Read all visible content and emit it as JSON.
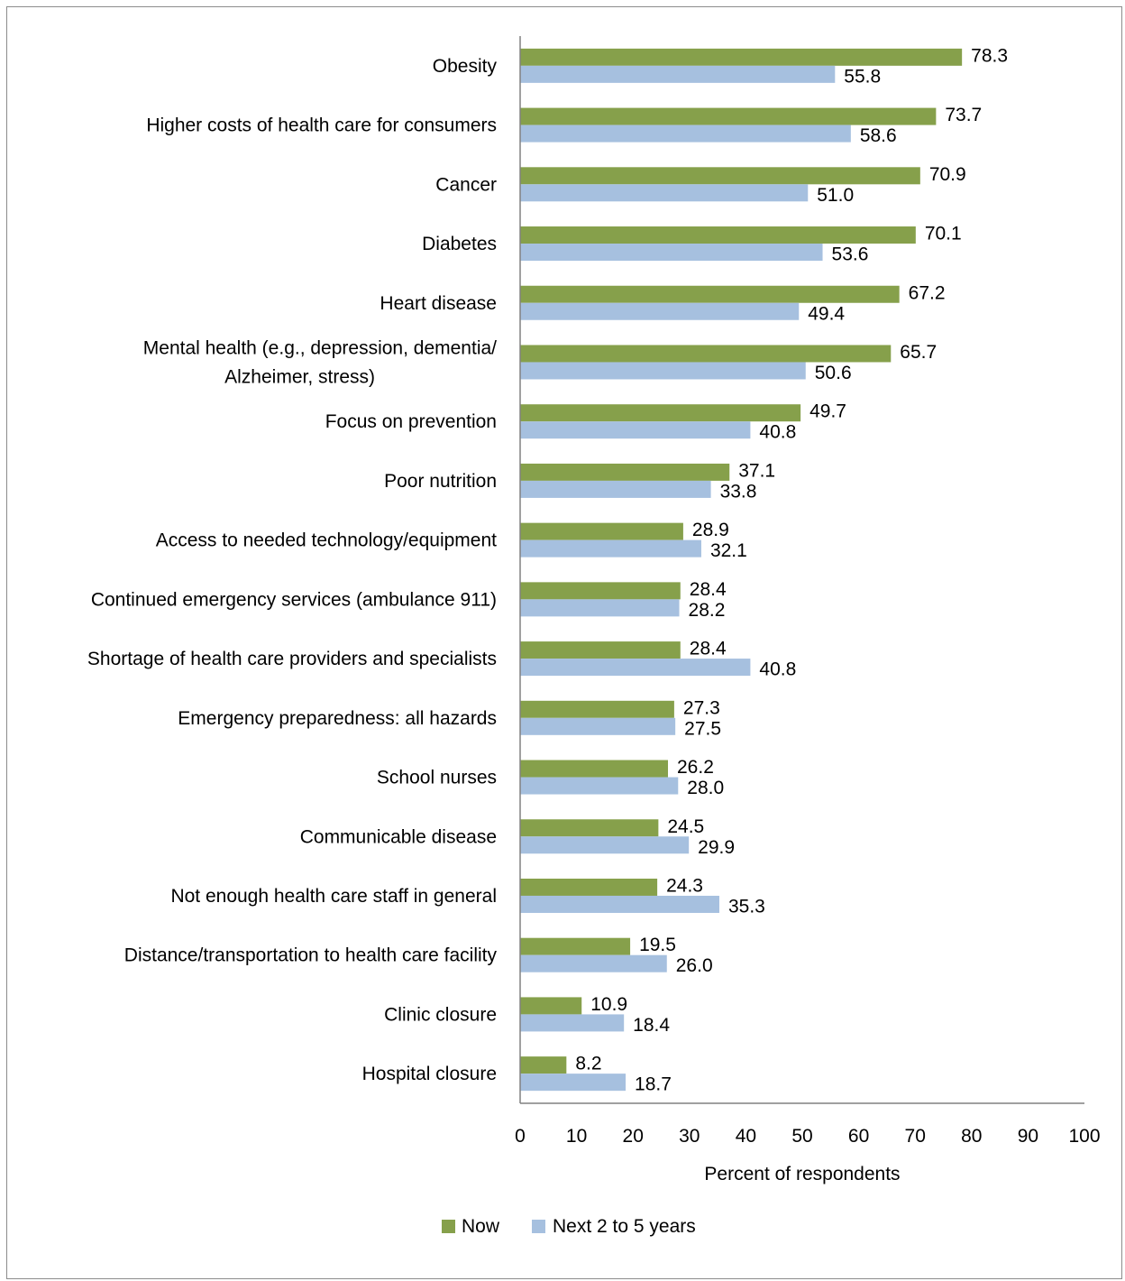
{
  "chart_data": {
    "type": "bar",
    "orientation": "horizontal",
    "categories": [
      "Obesity",
      "Higher costs of health care for consumers",
      "Cancer",
      "Diabetes",
      "Heart disease",
      [
        "Mental health (e.g., depression, dementia/",
        "Alzheimer, stress)"
      ],
      "Focus on prevention",
      "Poor nutrition",
      "Access to needed technology/equipment",
      "Continued emergency services (ambulance 911)",
      "Shortage of health care providers and specialists",
      "Emergency preparedness: all hazards",
      "School nurses",
      "Communicable disease",
      "Not enough health care staff in general",
      "Distance/transportation to health care facility",
      "Clinic closure",
      "Hospital closure"
    ],
    "series": [
      {
        "name": "Now",
        "color": "#86a04b",
        "values": [
          78.3,
          73.7,
          70.9,
          70.1,
          67.2,
          65.7,
          49.7,
          37.1,
          28.9,
          28.4,
          28.4,
          27.3,
          26.2,
          24.5,
          24.3,
          19.5,
          10.9,
          8.2
        ]
      },
      {
        "name": "Next 2 to 5 years",
        "color": "#a6c0df",
        "values": [
          55.8,
          58.6,
          51.0,
          53.6,
          49.4,
          50.6,
          40.8,
          33.8,
          32.1,
          28.2,
          40.8,
          27.5,
          28.0,
          29.9,
          35.3,
          26.0,
          18.4,
          18.7
        ]
      }
    ],
    "xlabel": "Percent of respondents",
    "ylabel": "",
    "xlim": [
      0,
      100
    ],
    "xticks": [
      "0",
      "10",
      "20",
      "30",
      "40",
      "50",
      "60",
      "70",
      "80",
      "90",
      "100"
    ],
    "grid": false,
    "legend_position": "bottom"
  }
}
